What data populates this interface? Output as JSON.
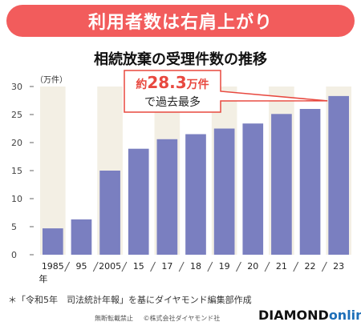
{
  "banner": {
    "text": "利用者数は右肩上がり"
  },
  "chart_data": {
    "type": "bar",
    "title": "相続放棄の受理件数の推移",
    "ylabel": "（万件）",
    "ylim": [
      0,
      30
    ],
    "yticks": [
      0,
      5,
      10,
      15,
      20,
      25,
      30
    ],
    "categories": [
      "1985",
      "95",
      "2005",
      "15",
      "17",
      "18",
      "19",
      "20",
      "21",
      "22",
      "23"
    ],
    "first_category_suffix": "年",
    "values": [
      4.7,
      6.3,
      15.0,
      18.9,
      20.6,
      21.5,
      22.5,
      23.4,
      25.1,
      26.0,
      28.3
    ],
    "annotation": {
      "prefix": "約",
      "value": "28.3",
      "unit": "万件",
      "line2": "で過去最多"
    },
    "bar_color": "#7a7fc0",
    "band_color": "#f3efe4",
    "grid": false
  },
  "footnote": "＊「令和5年　司法統計年報」を基にダイヤモンド編集部作成",
  "copyright": {
    "left": "無断転載禁止",
    "right": "©株式会社ダイヤモンド社"
  },
  "brand": {
    "name": "DIAMOND",
    "suffix": "online"
  },
  "colors": {
    "banner": "#f25c5c",
    "annotation": "#e8483f",
    "brand_accent": "#1e6fb8"
  }
}
